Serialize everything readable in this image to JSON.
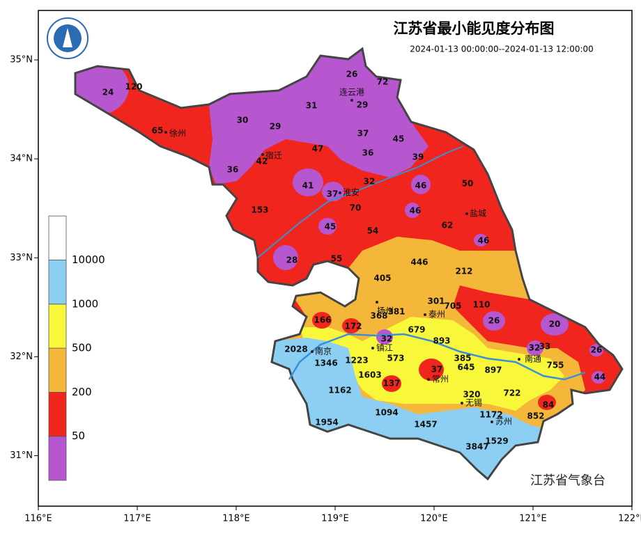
{
  "header": {
    "title": "江苏省最小能见度分布图",
    "subtitle": "2024-01-13 00:00:00--2024-01-13 12:00:00"
  },
  "credit": "江苏省气象台",
  "axes": {
    "xlim": [
      116,
      122
    ],
    "ylim": [
      30.49,
      35.5
    ],
    "xticks": [
      {
        "value": 116,
        "label": "116°E"
      },
      {
        "value": 117,
        "label": "117°E"
      },
      {
        "value": 118,
        "label": "118°E"
      },
      {
        "value": 119,
        "label": "119°E"
      },
      {
        "value": 120,
        "label": "120°E"
      },
      {
        "value": 121,
        "label": "121°E"
      },
      {
        "value": 122,
        "label": "122°E"
      }
    ],
    "yticks": [
      {
        "value": 31,
        "label": "31°N"
      },
      {
        "value": 32,
        "label": "32°N"
      },
      {
        "value": 33,
        "label": "33°N"
      },
      {
        "value": 34,
        "label": "34°N"
      },
      {
        "value": 35,
        "label": "35°N"
      }
    ]
  },
  "legend": {
    "levels": [
      50,
      200,
      500,
      1000,
      10000
    ],
    "colors": [
      "#b757d0",
      "#f0261e",
      "#f5b73a",
      "#f8f73a",
      "#8ccff2",
      "#ffffff"
    ]
  },
  "cities": [
    "连云港",
    "徐州",
    "宿迁",
    "淮安",
    "盐城",
    "扬州",
    "泰州",
    "南京",
    "镇江",
    "常州",
    "无锡",
    "苏州",
    "南通"
  ],
  "stations": [
    24,
    120,
    65,
    30,
    29,
    36,
    42,
    47,
    31,
    26,
    72,
    29,
    37,
    45,
    36,
    39,
    41,
    37,
    32,
    46,
    50,
    153,
    70,
    46,
    45,
    54,
    62,
    46,
    28,
    55,
    446,
    212,
    405,
    301,
    705,
    110,
    166,
    172,
    368,
    381,
    26,
    20,
    679,
    32,
    893,
    2028,
    32,
    33,
    26,
    1346,
    1223,
    573,
    385,
    645,
    37,
    897,
    755,
    1603,
    44,
    137,
    1162,
    320,
    722,
    84,
    1094,
    1172,
    852,
    1954,
    1457,
    1529,
    3847
  ]
}
